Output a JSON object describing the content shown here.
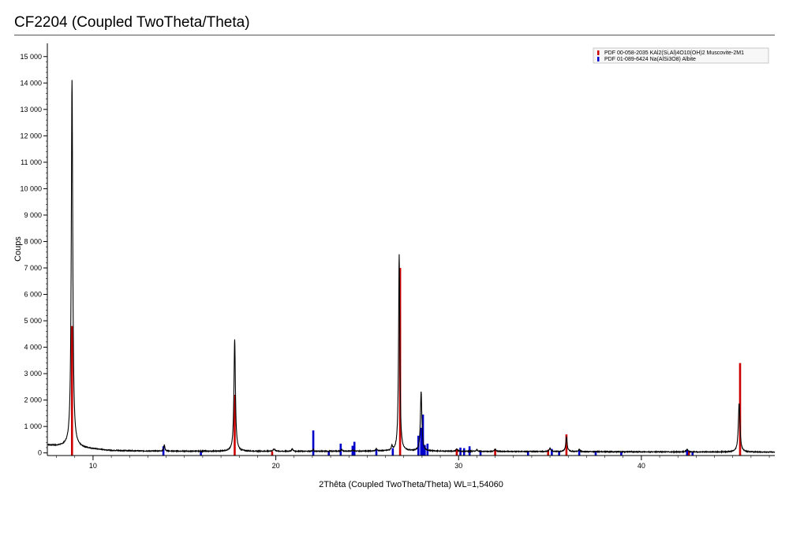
{
  "colors": {
    "observed": "#000000",
    "muscovite": "#cc0000",
    "albite": "#0000cc",
    "axis": "#000000"
  },
  "chart_data": {
    "type": "line",
    "title": "CF2204 (Coupled TwoTheta/Theta)",
    "xlabel": "2Thêta (Coupled TwoTheta/Theta) WL=1,54060",
    "ylabel": "Coups",
    "xlim": [
      7.5,
      47.3
    ],
    "ylim": [
      -100,
      15500
    ],
    "xticks": [
      10,
      20,
      30,
      40
    ],
    "xtick_labels": [
      "10",
      "20",
      "30",
      "40"
    ],
    "yticks": [
      0,
      1000,
      2000,
      3000,
      4000,
      5000,
      6000,
      7000,
      8000,
      9000,
      10000,
      11000,
      12000,
      13000,
      14000,
      15000
    ],
    "ytick_labels": [
      "0",
      "1 000",
      "2 000",
      "3 000",
      "4 000",
      "5 000",
      "6 000",
      "7 000",
      "8 000",
      "9 000",
      "10 000",
      "11 000",
      "12 000",
      "13 000",
      "14 000",
      "15 000"
    ],
    "grid": false,
    "legend_position": "top-right",
    "observed": {
      "background": [
        [
          7.5,
          300
        ],
        [
          8.0,
          260
        ],
        [
          8.5,
          250
        ],
        [
          9.5,
          180
        ],
        [
          11,
          90
        ],
        [
          13,
          70
        ],
        [
          17,
          60
        ],
        [
          22,
          60
        ],
        [
          26,
          70
        ],
        [
          30,
          60
        ],
        [
          35,
          50
        ],
        [
          40,
          40
        ],
        [
          47.3,
          30
        ]
      ],
      "peaks": [
        {
          "x": 8.85,
          "h": 13900,
          "w": 0.07
        },
        {
          "x": 13.9,
          "h": 250,
          "w": 0.05
        },
        {
          "x": 17.75,
          "h": 4250,
          "w": 0.07
        },
        {
          "x": 19.9,
          "h": 80,
          "w": 0.1
        },
        {
          "x": 20.9,
          "h": 90,
          "w": 0.07
        },
        {
          "x": 22.05,
          "h": 70,
          "w": 0.05
        },
        {
          "x": 23.6,
          "h": 60,
          "w": 0.06
        },
        {
          "x": 24.2,
          "h": 50,
          "w": 0.06
        },
        {
          "x": 25.5,
          "h": 80,
          "w": 0.07
        },
        {
          "x": 26.35,
          "h": 150,
          "w": 0.06
        },
        {
          "x": 26.75,
          "h": 7450,
          "w": 0.06
        },
        {
          "x": 27.95,
          "h": 2250,
          "w": 0.07
        },
        {
          "x": 29.9,
          "h": 90,
          "w": 0.07
        },
        {
          "x": 31.0,
          "h": 60,
          "w": 0.07
        },
        {
          "x": 32.0,
          "h": 80,
          "w": 0.07
        },
        {
          "x": 35.0,
          "h": 120,
          "w": 0.08
        },
        {
          "x": 35.9,
          "h": 550,
          "w": 0.07
        },
        {
          "x": 36.6,
          "h": 90,
          "w": 0.06
        },
        {
          "x": 42.5,
          "h": 100,
          "w": 0.08
        },
        {
          "x": 45.35,
          "h": 1850,
          "w": 0.08
        }
      ]
    },
    "legend": [
      {
        "name": "PDF 00-058-2035 KAl2(Si,Al)4O10(OH)2 Muscovite-2M1",
        "color": "#cc0000"
      },
      {
        "name": "PDF 01-089-6424 Na(AlSi3O8) Albite",
        "color": "#0000cc"
      }
    ],
    "series": [
      {
        "name": "PDF 00-058-2035 KAl2(Si,Al)4O10(OH)2 Muscovite-2M1",
        "color": "#cc0000",
        "sticks": [
          [
            8.85,
            4800
          ],
          [
            17.75,
            2200
          ],
          [
            19.8,
            60
          ],
          [
            22.9,
            40
          ],
          [
            26.8,
            7000
          ],
          [
            29.9,
            150
          ],
          [
            32.0,
            150
          ],
          [
            34.9,
            120
          ],
          [
            35.9,
            700
          ],
          [
            42.6,
            70
          ],
          [
            45.4,
            3400
          ]
        ]
      },
      {
        "name": "PDF 01-089-6424 Na(AlSi3O8) Albite",
        "color": "#0000cc",
        "sticks": [
          [
            13.85,
            250
          ],
          [
            15.9,
            60
          ],
          [
            22.05,
            850
          ],
          [
            22.9,
            50
          ],
          [
            23.55,
            350
          ],
          [
            24.2,
            270
          ],
          [
            24.3,
            420
          ],
          [
            25.5,
            120
          ],
          [
            26.4,
            180
          ],
          [
            27.8,
            650
          ],
          [
            27.95,
            950
          ],
          [
            28.05,
            1450
          ],
          [
            28.15,
            300
          ],
          [
            28.3,
            350
          ],
          [
            30.1,
            200
          ],
          [
            30.3,
            180
          ],
          [
            30.6,
            250
          ],
          [
            31.2,
            100
          ],
          [
            33.8,
            50
          ],
          [
            35.1,
            150
          ],
          [
            35.5,
            80
          ],
          [
            36.6,
            100
          ],
          [
            37.5,
            80
          ],
          [
            38.9,
            50
          ],
          [
            42.5,
            130
          ],
          [
            42.8,
            60
          ]
        ]
      }
    ]
  }
}
